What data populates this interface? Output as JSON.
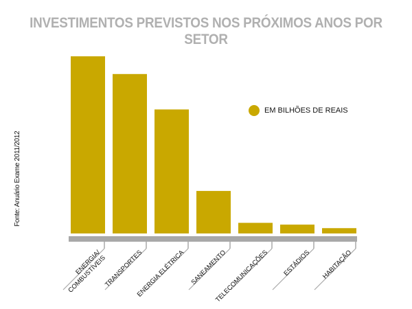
{
  "colors": {
    "bar": "#c9a800",
    "baseline": "#a8a8a8",
    "title": "#b0b0b0",
    "text": "#111111"
  },
  "chart_data": {
    "type": "bar",
    "title": "INVESTIMENTOS PREVISTOS NOS PRÓXIMOS ANOS POR SETOR",
    "source": "Fonte: Anuário Exame 2011/2012",
    "categories": [
      "ENERGIA/ COMBUSTÍVEIS",
      "TRANSPORTES",
      "ENERGIA ELÉTRICA",
      "SANEAMENTO",
      "TELECOMUNICAÇÕES",
      "ESTÁDIOS",
      "HABITAÇÃO"
    ],
    "series": [
      {
        "name": "EM BILHÕES DE REAIS",
        "values": [
          100,
          90,
          70,
          24,
          6,
          5,
          3
        ]
      }
    ],
    "ylim": [
      0,
      100
    ],
    "grid": false,
    "legend_position": "right"
  }
}
